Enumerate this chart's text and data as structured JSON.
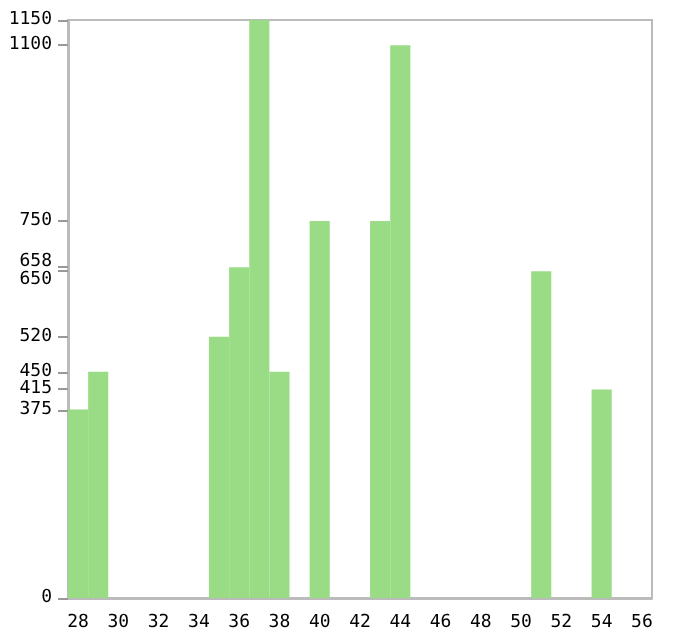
{
  "chart_data": {
    "type": "bar",
    "categories": [
      "28",
      null,
      "30",
      null,
      "32",
      null,
      "34",
      null,
      "36",
      null,
      "38",
      null,
      "40",
      null,
      "42",
      null,
      "44",
      null,
      "46",
      null,
      "48",
      null,
      "50",
      null,
      "52",
      null,
      "54",
      null,
      "56"
    ],
    "values": [
      375,
      450,
      0,
      0,
      0,
      0,
      0,
      520,
      658,
      1150,
      450,
      0,
      750,
      0,
      0,
      750,
      1100,
      0,
      0,
      0,
      0,
      0,
      0,
      650,
      0,
      0,
      415,
      0,
      0
    ],
    "color": "#9adc86",
    "ylim": [
      0,
      1150
    ],
    "yticks": [
      0,
      375,
      415,
      450,
      520,
      650,
      658,
      750,
      1100,
      1150
    ],
    "grid": false
  }
}
